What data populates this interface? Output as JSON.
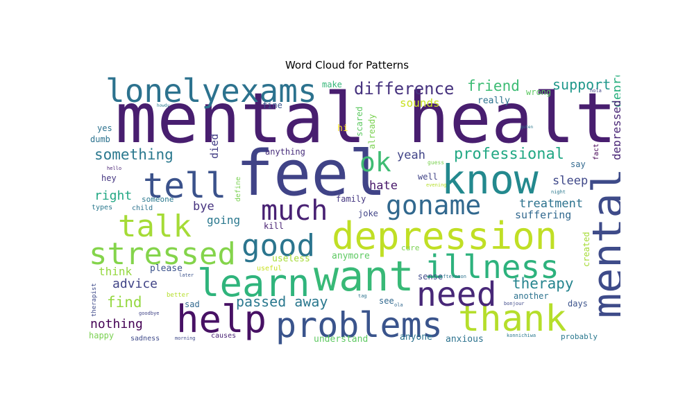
{
  "chart_data": {
    "type": "wordcloud",
    "title": "Word Cloud for Patterns",
    "words": [
      {
        "text": "mental health",
        "weight": 1.0,
        "color": "#481e6f",
        "rotate": 0
      },
      {
        "text": "feel",
        "weight": 0.93,
        "color": "#404387",
        "rotate": 0
      },
      {
        "text": "know",
        "weight": 0.6,
        "color": "#23898e",
        "rotate": 0
      },
      {
        "text": "want",
        "weight": 0.62,
        "color": "#38b977",
        "rotate": 0
      },
      {
        "text": "mental",
        "weight": 0.62,
        "color": "#3e4b89",
        "rotate": -90
      },
      {
        "text": "depression",
        "weight": 0.57,
        "color": "#c0df25",
        "rotate": 0
      },
      {
        "text": "help",
        "weight": 0.56,
        "color": "#471164",
        "rotate": 0
      },
      {
        "text": "learn",
        "weight": 0.56,
        "color": "#2fb47c",
        "rotate": 0
      },
      {
        "text": "problems",
        "weight": 0.53,
        "color": "#3a548c",
        "rotate": 0
      },
      {
        "text": "thank",
        "weight": 0.55,
        "color": "#b5de2b",
        "rotate": 0
      },
      {
        "text": "need",
        "weight": 0.5,
        "color": "#482878",
        "rotate": 0
      },
      {
        "text": "tell",
        "weight": 0.52,
        "color": "#3b528b",
        "rotate": 0
      },
      {
        "text": "lonelyexams",
        "weight": 0.48,
        "color": "#2c728e",
        "rotate": 0
      },
      {
        "text": "illness",
        "weight": 0.47,
        "color": "#2db27d",
        "rotate": 0
      },
      {
        "text": "stressed",
        "weight": 0.45,
        "color": "#84d44b",
        "rotate": 0
      },
      {
        "text": "good",
        "weight": 0.45,
        "color": "#2b758e",
        "rotate": 0
      },
      {
        "text": "talk",
        "weight": 0.45,
        "color": "#a5db36",
        "rotate": 0
      },
      {
        "text": "much",
        "weight": 0.43,
        "color": "#482173",
        "rotate": 0
      },
      {
        "text": "goname",
        "weight": 0.39,
        "color": "#31688e",
        "rotate": 0
      },
      {
        "text": "ok",
        "weight": 0.4,
        "color": "#3fbc73",
        "rotate": 0
      },
      {
        "text": "difference",
        "weight": 0.26,
        "color": "#46327e",
        "rotate": 0
      },
      {
        "text": "professional",
        "weight": 0.23,
        "color": "#22a884",
        "rotate": 0
      },
      {
        "text": "something",
        "weight": 0.22,
        "color": "#2a788e",
        "rotate": 0
      },
      {
        "text": "friend",
        "weight": 0.21,
        "color": "#3dbc74",
        "rotate": 0
      },
      {
        "text": "support",
        "weight": 0.2,
        "color": "#1f988b",
        "rotate": 0
      },
      {
        "text": "therapy",
        "weight": 0.22,
        "color": "#25848e",
        "rotate": 0
      },
      {
        "text": "passed away",
        "weight": 0.2,
        "color": "#2a788e",
        "rotate": 0
      },
      {
        "text": "find",
        "weight": 0.21,
        "color": "#95d840",
        "rotate": 0
      },
      {
        "text": "advice",
        "weight": 0.19,
        "color": "#414487",
        "rotate": 0
      },
      {
        "text": "nothing",
        "weight": 0.19,
        "color": "#440154",
        "rotate": 0
      },
      {
        "text": "depressed",
        "weight": 0.19,
        "color": "#2ab07f",
        "rotate": -90
      },
      {
        "text": "depressed",
        "weight": 0.16,
        "color": "#482475",
        "rotate": -90
      },
      {
        "text": "treatment",
        "weight": 0.17,
        "color": "#2c728e",
        "rotate": 0
      },
      {
        "text": "sleep",
        "weight": 0.18,
        "color": "#3f4889",
        "rotate": 0
      },
      {
        "text": "hate",
        "weight": 0.17,
        "color": "#48186a",
        "rotate": 0
      },
      {
        "text": "yeah",
        "weight": 0.17,
        "color": "#404387",
        "rotate": 0
      },
      {
        "text": "right",
        "weight": 0.18,
        "color": "#22a884",
        "rotate": 0
      },
      {
        "text": "bye",
        "weight": 0.17,
        "color": "#46337f",
        "rotate": 0
      },
      {
        "text": "going",
        "weight": 0.16,
        "color": "#2a788e",
        "rotate": 0
      },
      {
        "text": "sounds",
        "weight": 0.16,
        "color": "#c8e020",
        "rotate": 0
      },
      {
        "text": "died",
        "weight": 0.15,
        "color": "#433e85",
        "rotate": -90
      },
      {
        "text": "suffering",
        "weight": 0.15,
        "color": "#31688e",
        "rotate": 0
      },
      {
        "text": "think",
        "weight": 0.16,
        "color": "#95d840",
        "rotate": 0
      },
      {
        "text": "created",
        "weight": 0.12,
        "color": "#a5db36",
        "rotate": -90
      },
      {
        "text": "wrong",
        "weight": 0.11,
        "color": "#5ec962",
        "rotate": 0
      },
      {
        "text": "make",
        "weight": 0.11,
        "color": "#35b779",
        "rotate": 0
      },
      {
        "text": "fine",
        "weight": 0.11,
        "color": "#3b528b",
        "rotate": 0
      },
      {
        "text": "really",
        "weight": 0.11,
        "color": "#2c728e",
        "rotate": 0
      },
      {
        "text": "scared",
        "weight": 0.1,
        "color": "#5ec962",
        "rotate": -90
      },
      {
        "text": "already",
        "weight": 0.1,
        "color": "#7ad151",
        "rotate": -90
      },
      {
        "text": "hi",
        "weight": 0.1,
        "color": "#fde725",
        "rotate": 0
      },
      {
        "text": "yes",
        "weight": 0.1,
        "color": "#2c728e",
        "rotate": 0
      },
      {
        "text": "dumb",
        "weight": 0.1,
        "color": "#2c728e",
        "rotate": 0
      },
      {
        "text": "anything",
        "weight": 0.11,
        "color": "#472d7b",
        "rotate": 0
      },
      {
        "text": "hey",
        "weight": 0.11,
        "color": "#453781",
        "rotate": 0
      },
      {
        "text": "well",
        "weight": 0.11,
        "color": "#414487",
        "rotate": 0
      },
      {
        "text": "say",
        "weight": 0.1,
        "color": "#31688e",
        "rotate": 0
      },
      {
        "text": "fact",
        "weight": 0.08,
        "color": "#440154",
        "rotate": -90
      },
      {
        "text": "family",
        "weight": 0.11,
        "color": "#453781",
        "rotate": 0
      },
      {
        "text": "joke",
        "weight": 0.11,
        "color": "#414487",
        "rotate": 0
      },
      {
        "text": "kill",
        "weight": 0.11,
        "color": "#482173",
        "rotate": 0
      },
      {
        "text": "someone",
        "weight": 0.1,
        "color": "#2a788e",
        "rotate": 0
      },
      {
        "text": "types",
        "weight": 0.08,
        "color": "#2a788e",
        "rotate": 0
      },
      {
        "text": "child",
        "weight": 0.08,
        "color": "#2c728e",
        "rotate": 0
      },
      {
        "text": "define",
        "weight": 0.08,
        "color": "#7ad151",
        "rotate": -90
      },
      {
        "text": "useless",
        "weight": 0.11,
        "color": "#a5db36",
        "rotate": 0
      },
      {
        "text": "anymore",
        "weight": 0.11,
        "color": "#5ec962",
        "rotate": 0
      },
      {
        "text": "cure",
        "weight": 0.09,
        "color": "#7ad151",
        "rotate": 0
      },
      {
        "text": "please",
        "weight": 0.12,
        "color": "#3b528b",
        "rotate": 0
      },
      {
        "text": "useful",
        "weight": 0.08,
        "color": "#c8e020",
        "rotate": 0
      },
      {
        "text": "sense",
        "weight": 0.11,
        "color": "#3e4989",
        "rotate": 0
      },
      {
        "text": "see",
        "weight": 0.11,
        "color": "#31688e",
        "rotate": 0
      },
      {
        "text": "another",
        "weight": 0.11,
        "color": "#2c728e",
        "rotate": 0
      },
      {
        "text": "days",
        "weight": 0.11,
        "color": "#3b528b",
        "rotate": 0
      },
      {
        "text": "sad",
        "weight": 0.11,
        "color": "#31688e",
        "rotate": 0
      },
      {
        "text": "therapist",
        "weight": 0.08,
        "color": "#3e4989",
        "rotate": -90
      },
      {
        "text": "better",
        "weight": 0.08,
        "color": "#b5de2b",
        "rotate": 0
      },
      {
        "text": "goodbye",
        "weight": 0.06,
        "color": "#414487",
        "rotate": 0
      },
      {
        "text": "happy",
        "weight": 0.11,
        "color": "#7ad151",
        "rotate": 0
      },
      {
        "text": "sadness",
        "weight": 0.09,
        "color": "#3e4989",
        "rotate": 0
      },
      {
        "text": "morning",
        "weight": 0.06,
        "color": "#3e4989",
        "rotate": 0
      },
      {
        "text": "causes",
        "weight": 0.09,
        "color": "#482173",
        "rotate": 0
      },
      {
        "text": "understand",
        "weight": 0.11,
        "color": "#5ec962",
        "rotate": 0
      },
      {
        "text": "anyone",
        "weight": 0.11,
        "color": "#2c728e",
        "rotate": 0
      },
      {
        "text": "anxious",
        "weight": 0.11,
        "color": "#2c728e",
        "rotate": 0
      },
      {
        "text": "konnichiwa",
        "weight": 0.06,
        "color": "#2a788e",
        "rotate": 0
      },
      {
        "text": "probably",
        "weight": 0.1,
        "color": "#2a788e",
        "rotate": 0
      },
      {
        "text": "tag",
        "weight": 0.06,
        "color": "#2c728e",
        "rotate": 0
      },
      {
        "text": "ola",
        "weight": 0.06,
        "color": "#31688e",
        "rotate": 0
      },
      {
        "text": "bonjour",
        "weight": 0.06,
        "color": "#3e4989",
        "rotate": 0
      },
      {
        "text": "later",
        "weight": 0.06,
        "color": "#3b528b",
        "rotate": 0
      },
      {
        "text": "afternoon",
        "weight": 0.06,
        "color": "#2c728e",
        "rotate": 0
      },
      {
        "text": "evening",
        "weight": 0.06,
        "color": "#b5de2b",
        "rotate": 0
      },
      {
        "text": "night",
        "weight": 0.06,
        "color": "#2a788e",
        "rotate": 0
      },
      {
        "text": "guess",
        "weight": 0.07,
        "color": "#7ad151",
        "rotate": 0
      },
      {
        "text": "hello",
        "weight": 0.06,
        "color": "#482173",
        "rotate": 0
      },
      {
        "text": "howdy",
        "weight": 0.05,
        "color": "#2a788e",
        "rotate": 0
      },
      {
        "text": "hola",
        "weight": 0.05,
        "color": "#414487",
        "rotate": 0
      },
      {
        "text": "guten",
        "weight": 0.05,
        "color": "#2a788e",
        "rotate": 0
      }
    ]
  }
}
